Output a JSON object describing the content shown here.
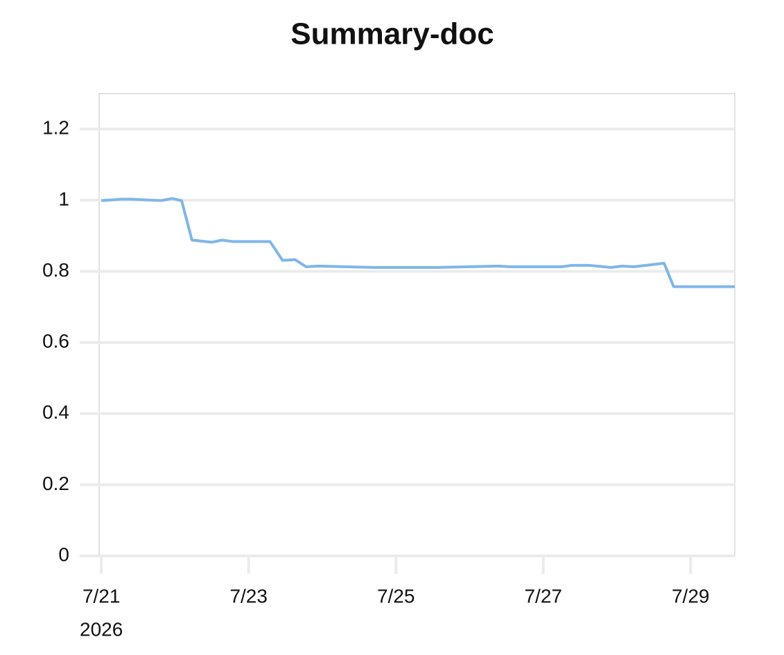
{
  "chart_data": {
    "type": "line",
    "title": "Summary-doc",
    "x": [
      21.0,
      21.27,
      21.41,
      21.81,
      21.96,
      22.09,
      22.23,
      22.5,
      22.64,
      22.78,
      23.29,
      23.46,
      23.63,
      23.78,
      23.95,
      24.71,
      25.55,
      26.4,
      26.54,
      27.25,
      27.39,
      27.62,
      27.92,
      28.07,
      28.23,
      28.64,
      28.77,
      29.6
    ],
    "values": [
      0.999,
      1.003,
      1.003,
      0.999,
      1.005,
      0.999,
      0.888,
      0.882,
      0.888,
      0.884,
      0.884,
      0.831,
      0.833,
      0.813,
      0.815,
      0.811,
      0.811,
      0.815,
      0.813,
      0.813,
      0.817,
      0.817,
      0.811,
      0.815,
      0.813,
      0.823,
      0.757,
      0.757
    ],
    "color": "#7eb6e9",
    "xlim": [
      20.97,
      29.6
    ],
    "xticks": [
      {
        "value": 21,
        "label": "7/21"
      },
      {
        "value": 23,
        "label": "7/23"
      },
      {
        "value": 25,
        "label": "7/25"
      },
      {
        "value": 27,
        "label": "7/27"
      },
      {
        "value": 29,
        "label": "7/29"
      }
    ],
    "x_year_label": "2026",
    "ylim": [
      0,
      1.3
    ],
    "yticks": [
      0,
      0.2,
      0.4,
      0.6,
      0.8,
      1,
      1.2
    ],
    "grid": true
  }
}
